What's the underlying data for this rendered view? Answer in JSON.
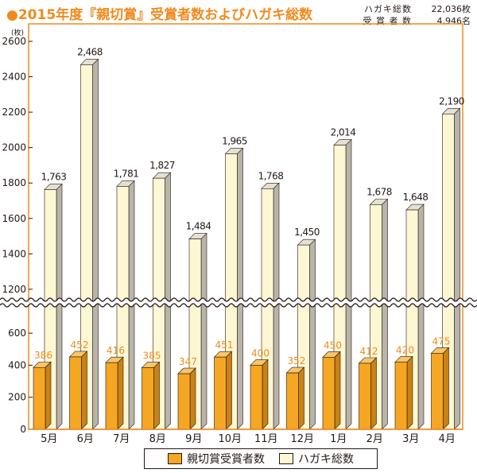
{
  "title": "●2015年度『親切賞』受賞者数およびハガキ総数",
  "totals": [
    {
      "label": "ハガキ総数",
      "value": "22,036枚"
    },
    {
      "label": "受 賞 者 数",
      "value": "4,946名"
    }
  ],
  "chart_data": {
    "type": "bar",
    "yunit": "(枚)",
    "categories": [
      "5月",
      "6月",
      "7月",
      "8月",
      "9月",
      "10月",
      "11月",
      "12月",
      "1月",
      "2月",
      "3月",
      "4月"
    ],
    "series": [
      {
        "name": "親切賞受賞者数",
        "values": [
          386,
          452,
          416,
          385,
          347,
          451,
          400,
          352,
          450,
          412,
          420,
          475
        ],
        "labels": [
          "386",
          "452",
          "416",
          "385",
          "347",
          "451",
          "400",
          "352",
          "450",
          "412",
          "420",
          "475"
        ]
      },
      {
        "name": "ハガキ総数",
        "values": [
          1763,
          2468,
          1781,
          1827,
          1484,
          1965,
          1768,
          1450,
          2014,
          1678,
          1648,
          2190
        ],
        "labels": [
          "1,763",
          "2,468",
          "1,781",
          "1,827",
          "1,484",
          "1,965",
          "1,768",
          "1,450",
          "2,014",
          "1,678",
          "1,648",
          "2,190"
        ]
      }
    ],
    "yaxis_lower": {
      "ticks": [
        "0",
        "200",
        "400",
        "600"
      ],
      "range": [
        0,
        700
      ]
    },
    "yaxis_upper": {
      "ticks": [
        "1200",
        "1400",
        "1600",
        "1800",
        "2000",
        "2200",
        "2400",
        "2600"
      ],
      "range": [
        1150,
        2600
      ]
    },
    "axis_break": true,
    "grid": false,
    "legend_position": "bottom"
  },
  "colors": {
    "accent": "#f08a1e",
    "orange_bar": "#f5a623",
    "orange_side": "#c98214",
    "cream_bar": "#fdf7d3",
    "cream_side": "#b9b4a8",
    "cream_top": "#e4e0d2"
  }
}
